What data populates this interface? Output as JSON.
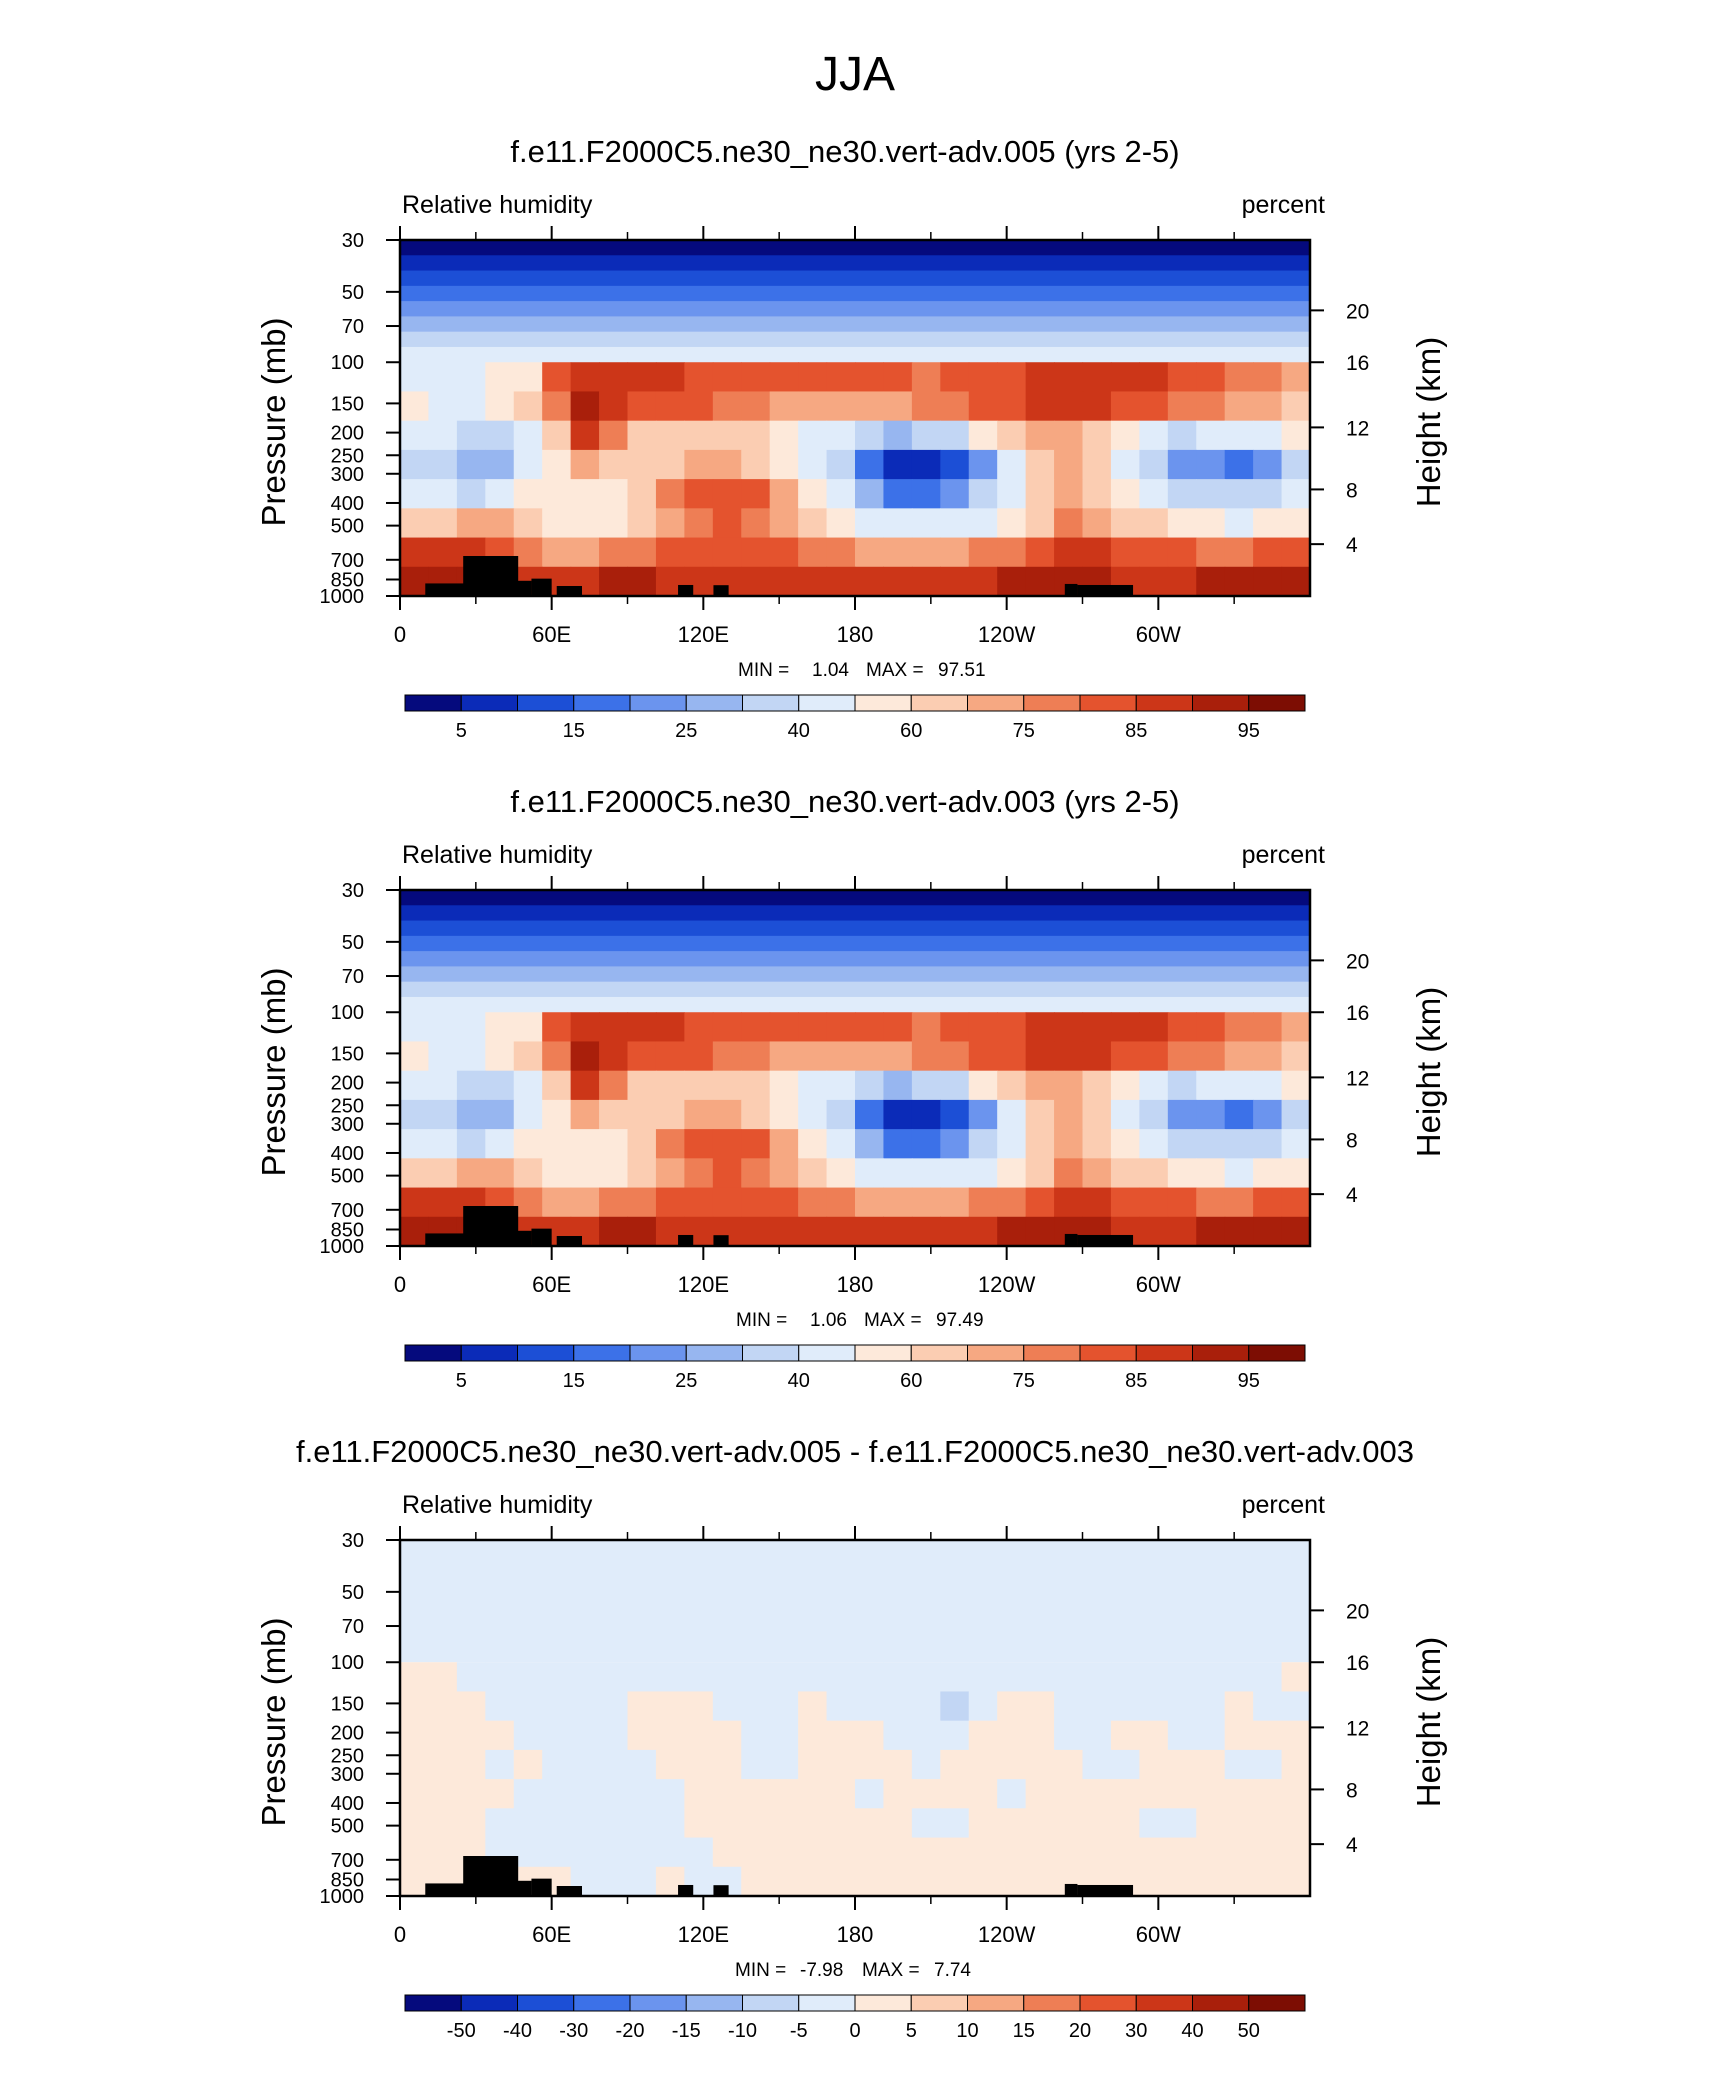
{
  "figure": {
    "title": "JJA"
  },
  "chart_data": [
    {
      "type": "heatmap",
      "title": "f.e11.F2000C5.ne30_ne30.vert-adv.005 (yrs 2-5)",
      "left_label": "Relative humidity",
      "right_label": "percent",
      "ylabel": "Pressure (mb)",
      "ylabel_right": "Height (km)",
      "x_ticks": [
        "0",
        "60E",
        "120E",
        "180",
        "120W",
        "60W"
      ],
      "y_ticks": [
        "30",
        "50",
        "70",
        "100",
        "150",
        "200",
        "250",
        "300",
        "400",
        "500",
        "700",
        "850",
        "1000"
      ],
      "height_ticks": [
        "20",
        "16",
        "12",
        "8",
        "4"
      ],
      "stats": {
        "min_label": "MIN =",
        "min": "1.04",
        "max_label": "MAX =",
        "max": "97.51"
      },
      "colorbar_labels": [
        "5",
        "15",
        "25",
        "40",
        "60",
        "75",
        "85",
        "95"
      ],
      "colorbar_colors": [
        "#050a7d",
        "#0b2bb8",
        "#1c4fd6",
        "#3c71e8",
        "#6b94ee",
        "#97b6f0",
        "#c2d6f4",
        "#e0ecfa",
        "#fde9da",
        "#fbcdb2",
        "#f6a882",
        "#ee7e55",
        "#e4532e",
        "#cc3618",
        "#a91f0b",
        "#7d0d03"
      ],
      "ylim": [
        30,
        1000
      ],
      "xlim": [
        0,
        360
      ],
      "field": {
        "rows": [
          [
            45,
            40,
            40,
            50,
            55,
            80,
            88,
            88,
            86,
            85,
            84,
            82,
            82,
            82,
            80,
            80,
            80,
            80,
            78,
            80,
            82,
            84,
            86,
            88,
            88,
            86,
            85,
            82,
            80,
            78,
            75,
            72
          ],
          [
            50,
            45,
            42,
            52,
            60,
            78,
            90,
            88,
            84,
            80,
            80,
            78,
            76,
            72,
            70,
            70,
            72,
            74,
            76,
            78,
            82,
            82,
            85,
            86,
            85,
            82,
            80,
            78,
            75,
            72,
            70,
            66
          ],
          [
            45,
            40,
            30,
            35,
            48,
            60,
            85,
            75,
            65,
            60,
            62,
            64,
            62,
            56,
            48,
            40,
            32,
            28,
            30,
            38,
            50,
            62,
            70,
            72,
            66,
            50,
            40,
            38,
            40,
            42,
            45,
            50
          ],
          [
            35,
            30,
            25,
            28,
            40,
            52,
            70,
            65,
            60,
            66,
            70,
            70,
            66,
            55,
            42,
            30,
            15,
            8,
            5,
            10,
            22,
            40,
            60,
            70,
            60,
            45,
            30,
            22,
            20,
            18,
            20,
            30
          ],
          [
            45,
            40,
            35,
            40,
            50,
            55,
            55,
            58,
            68,
            75,
            80,
            82,
            80,
            70,
            55,
            40,
            25,
            18,
            15,
            20,
            32,
            45,
            62,
            72,
            65,
            55,
            45,
            38,
            32,
            30,
            32,
            42
          ],
          [
            60,
            62,
            70,
            72,
            65,
            55,
            55,
            58,
            62,
            70,
            78,
            80,
            78,
            70,
            60,
            52,
            45,
            42,
            40,
            42,
            48,
            55,
            65,
            75,
            72,
            68,
            62,
            55,
            50,
            48,
            50,
            55
          ],
          [
            88,
            86,
            85,
            82,
            75,
            70,
            72,
            75,
            78,
            80,
            82,
            82,
            82,
            80,
            78,
            76,
            74,
            72,
            72,
            72,
            75,
            78,
            82,
            86,
            85,
            84,
            82,
            80,
            78,
            78,
            80,
            82
          ],
          [
            90,
            92,
            92,
            90,
            88,
            85,
            88,
            90,
            90,
            88,
            88,
            88,
            88,
            86,
            86,
            86,
            86,
            86,
            88,
            88,
            88,
            90,
            92,
            94,
            90,
            88,
            88,
            88,
            90,
            92,
            92,
            92
          ]
        ]
      }
    },
    {
      "type": "heatmap",
      "title": "f.e11.F2000C5.ne30_ne30.vert-adv.003 (yrs 2-5)",
      "left_label": "Relative humidity",
      "right_label": "percent",
      "ylabel": "Pressure (mb)",
      "ylabel_right": "Height (km)",
      "x_ticks": [
        "0",
        "60E",
        "120E",
        "180",
        "120W",
        "60W"
      ],
      "y_ticks": [
        "30",
        "50",
        "70",
        "100",
        "150",
        "200",
        "250",
        "300",
        "400",
        "500",
        "700",
        "850",
        "1000"
      ],
      "height_ticks": [
        "20",
        "16",
        "12",
        "8",
        "4"
      ],
      "stats": {
        "min_label": "MIN =",
        "min": "1.06",
        "max_label": "MAX =",
        "max": "97.49"
      },
      "colorbar_labels": [
        "5",
        "15",
        "25",
        "40",
        "60",
        "75",
        "85",
        "95"
      ],
      "colorbar_colors": [
        "#050a7d",
        "#0b2bb8",
        "#1c4fd6",
        "#3c71e8",
        "#6b94ee",
        "#97b6f0",
        "#c2d6f4",
        "#e0ecfa",
        "#fde9da",
        "#fbcdb2",
        "#f6a882",
        "#ee7e55",
        "#e4532e",
        "#cc3618",
        "#a91f0b",
        "#7d0d03"
      ],
      "ylim": [
        30,
        1000
      ],
      "xlim": [
        0,
        360
      ],
      "field": {
        "rows": [
          [
            46,
            41,
            41,
            52,
            56,
            80,
            88,
            88,
            86,
            85,
            84,
            82,
            82,
            82,
            80,
            80,
            80,
            80,
            78,
            80,
            82,
            84,
            86,
            88,
            88,
            86,
            85,
            82,
            80,
            78,
            75,
            72
          ],
          [
            52,
            46,
            44,
            53,
            62,
            78,
            90,
            88,
            84,
            80,
            80,
            78,
            76,
            72,
            70,
            70,
            72,
            74,
            76,
            78,
            82,
            82,
            85,
            86,
            85,
            82,
            80,
            78,
            75,
            72,
            70,
            66
          ],
          [
            44,
            40,
            31,
            36,
            48,
            60,
            85,
            75,
            65,
            60,
            62,
            64,
            62,
            56,
            48,
            40,
            32,
            28,
            30,
            38,
            50,
            62,
            70,
            72,
            66,
            50,
            40,
            38,
            40,
            42,
            45,
            50
          ],
          [
            35,
            30,
            26,
            28,
            40,
            52,
            70,
            65,
            60,
            66,
            70,
            70,
            66,
            55,
            42,
            30,
            15,
            8,
            6,
            10,
            22,
            40,
            60,
            70,
            60,
            45,
            30,
            22,
            20,
            18,
            20,
            30
          ],
          [
            44,
            40,
            35,
            40,
            50,
            55,
            55,
            58,
            68,
            75,
            80,
            82,
            80,
            70,
            55,
            40,
            25,
            18,
            15,
            20,
            32,
            45,
            62,
            72,
            65,
            55,
            45,
            38,
            32,
            30,
            32,
            42
          ],
          [
            60,
            62,
            70,
            72,
            65,
            55,
            55,
            58,
            62,
            70,
            78,
            80,
            78,
            70,
            60,
            52,
            45,
            42,
            40,
            42,
            48,
            55,
            65,
            75,
            72,
            68,
            62,
            55,
            50,
            48,
            50,
            55
          ],
          [
            88,
            86,
            85,
            82,
            75,
            70,
            72,
            75,
            78,
            80,
            82,
            82,
            82,
            80,
            78,
            76,
            74,
            72,
            72,
            72,
            75,
            78,
            82,
            86,
            85,
            84,
            82,
            80,
            78,
            78,
            80,
            82
          ],
          [
            90,
            92,
            92,
            90,
            88,
            85,
            88,
            90,
            90,
            88,
            88,
            88,
            88,
            86,
            86,
            86,
            86,
            86,
            88,
            88,
            88,
            90,
            92,
            94,
            90,
            88,
            88,
            88,
            90,
            92,
            92,
            92
          ]
        ]
      }
    },
    {
      "type": "heatmap",
      "title": "f.e11.F2000C5.ne30_ne30.vert-adv.005 - f.e11.F2000C5.ne30_ne30.vert-adv.003",
      "left_label": "Relative humidity",
      "right_label": "percent",
      "ylabel": "Pressure (mb)",
      "ylabel_right": "Height (km)",
      "x_ticks": [
        "0",
        "60E",
        "120E",
        "180",
        "120W",
        "60W"
      ],
      "y_ticks": [
        "30",
        "50",
        "70",
        "100",
        "150",
        "200",
        "250",
        "300",
        "400",
        "500",
        "700",
        "850",
        "1000"
      ],
      "height_ticks": [
        "20",
        "16",
        "12",
        "8",
        "4"
      ],
      "stats": {
        "min_label": "MIN =",
        "min": "-7.98",
        "max_label": "MAX =",
        "max": "7.74"
      },
      "colorbar_labels": [
        "-50",
        "-40",
        "-30",
        "-20",
        "-15",
        "-10",
        "-5",
        "0",
        "5",
        "10",
        "15",
        "20",
        "30",
        "40",
        "50"
      ],
      "colorbar_colors": [
        "#050a7d",
        "#0b2bb8",
        "#1c4fd6",
        "#3c71e8",
        "#6b94ee",
        "#97b6f0",
        "#c2d6f4",
        "#e0ecfa",
        "#fde9da",
        "#fbcdb2",
        "#f6a882",
        "#ee7e55",
        "#e4532e",
        "#cc3618",
        "#a91f0b",
        "#7d0d03"
      ],
      "ylim": [
        30,
        1000
      ],
      "xlim": [
        0,
        360
      ],
      "field": {
        "rows": [
          [
            1,
            1,
            -1,
            -1,
            -1,
            -1,
            -1,
            -1,
            -1,
            -1,
            -1,
            -1,
            -1,
            -1,
            -1,
            -1,
            -1,
            -1,
            -1,
            -1,
            -1,
            -1,
            -1,
            -1,
            -1,
            -1,
            -1,
            -1,
            -1,
            -1,
            -1,
            1
          ],
          [
            1,
            1,
            1,
            -1,
            -1,
            -1,
            -1,
            -1,
            1,
            1,
            1,
            -1,
            -1,
            -1,
            1,
            -1,
            -1,
            -1,
            -1,
            -6,
            -1,
            1,
            1,
            -1,
            -1,
            -1,
            -1,
            -1,
            -1,
            1,
            -1,
            -1
          ],
          [
            1,
            3,
            1,
            1,
            -1,
            -1,
            -1,
            -1,
            1,
            1,
            1,
            1,
            -1,
            -1,
            1,
            1,
            1,
            -1,
            -1,
            -1,
            1,
            1,
            1,
            -1,
            -1,
            1,
            1,
            -1,
            -1,
            1,
            1,
            1
          ],
          [
            1,
            3,
            1,
            -1,
            1,
            -1,
            -1,
            -1,
            -1,
            1,
            1,
            1,
            -1,
            -1,
            1,
            1,
            1,
            1,
            -1,
            1,
            1,
            1,
            1,
            1,
            -1,
            -1,
            1,
            1,
            1,
            -1,
            -1,
            1
          ],
          [
            3,
            3,
            1,
            1,
            -1,
            -1,
            -1,
            -1,
            -1,
            -1,
            1,
            1,
            1,
            1,
            1,
            1,
            -1,
            1,
            1,
            1,
            1,
            -1,
            1,
            1,
            1,
            1,
            1,
            1,
            1,
            1,
            1,
            1
          ],
          [
            1,
            1,
            1,
            -1,
            -1,
            -1,
            -1,
            -1,
            -1,
            -1,
            1,
            1,
            1,
            1,
            1,
            1,
            1,
            1,
            -1,
            -1,
            1,
            1,
            1,
            1,
            1,
            1,
            -1,
            -1,
            1,
            1,
            3,
            1
          ],
          [
            1,
            1,
            1,
            -1,
            -1,
            -1,
            -1,
            -1,
            -1,
            -1,
            -1,
            1,
            1,
            1,
            1,
            1,
            1,
            1,
            1,
            1,
            1,
            1,
            1,
            1,
            1,
            1,
            1,
            1,
            1,
            1,
            1,
            1
          ],
          [
            1,
            1,
            1,
            1,
            1,
            1,
            -1,
            -1,
            -1,
            1,
            -1,
            -1,
            1,
            1,
            1,
            1,
            1,
            1,
            1,
            1,
            1,
            1,
            1,
            1,
            1,
            1,
            1,
            1,
            1,
            1,
            1,
            1
          ]
        ]
      }
    }
  ]
}
